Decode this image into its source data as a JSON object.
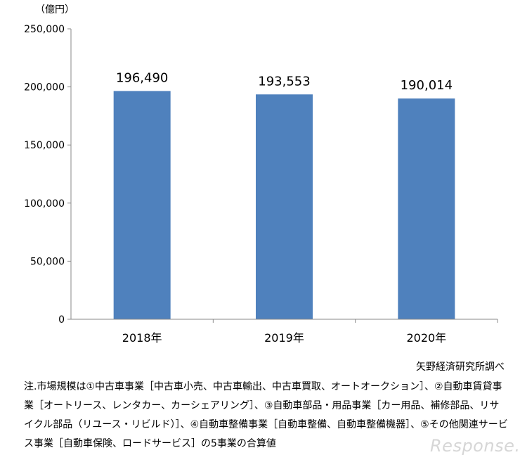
{
  "chart_data": {
    "type": "bar",
    "unit_label": "（億円）",
    "categories": [
      "2018年",
      "2019年",
      "2020年"
    ],
    "values": [
      196490,
      193553,
      190014
    ],
    "data_labels": [
      "196,490",
      "193,553",
      "190,014"
    ],
    "yticks": [
      "0",
      "50,000",
      "100,000",
      "150,000",
      "200,000",
      "250,000"
    ],
    "ylim": [
      0,
      250000
    ],
    "grid": false,
    "bar_color": "#4f81bd"
  },
  "source": "矢野経済研究所調べ",
  "note": "注.市場規模は①中古車事業［中古車小売、中古車輸出、中古車買取、オートオークション］、②自動車賃貸事業［オートリース、レンタカー、カーシェアリング］、③自動車部品・用品事業［カー用品、補修部品、リサイクル部品（リユース・リビルド）］、④自動車整備事業［自動車整備、自動車整備機器］、⑤その他関連サービス事業［自動車保険、ロードサービス］の5事業の合算値",
  "watermark": "Response."
}
